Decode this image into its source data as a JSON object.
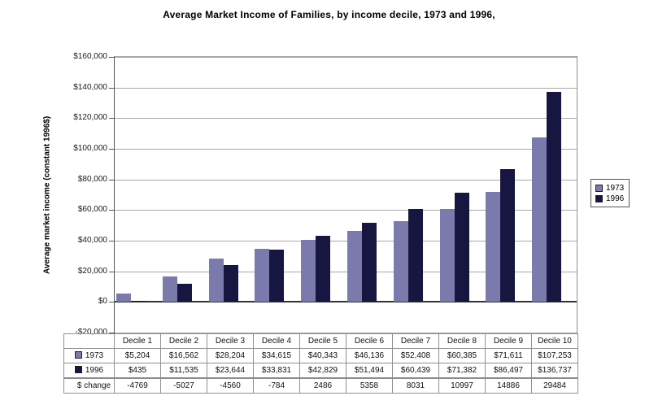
{
  "title": "Average Market Income of Families, by income decile, 1973 and 1996,",
  "chart_data": {
    "type": "bar",
    "title": "Average Market Income of Families, by income decile, 1973 and 1996,",
    "ylabel": "Average market income (constant 1996$)",
    "xlabel": "",
    "categories": [
      "Decile 1",
      "Decile 2",
      "Decile 3",
      "Decile 4",
      "Decile 5",
      "Decile 6",
      "Decile 7",
      "Decile 8",
      "Decile 9",
      "Decile 10"
    ],
    "series": [
      {
        "name": "1973",
        "color": "#7a7aad",
        "values": [
          5204,
          16562,
          28204,
          34615,
          40343,
          46136,
          52408,
          60385,
          71611,
          107253
        ]
      },
      {
        "name": "1996",
        "color": "#161640",
        "values": [
          435,
          11535,
          23644,
          33831,
          42829,
          51494,
          60439,
          71382,
          86497,
          136737
        ]
      }
    ],
    "ylim": [
      -20000,
      160000
    ],
    "ytick_step": 20000,
    "ytick_labels": [
      "-$20,000",
      "$0",
      "$20,000",
      "$40,000",
      "$60,000",
      "$80,000",
      "$100,000",
      "$120,000",
      "$140,000",
      "$160,000"
    ],
    "grid": true,
    "legend_position": "right"
  },
  "table": {
    "corner_label": "",
    "row_labels": [
      "1973",
      "1996",
      "$ change"
    ],
    "formatted_rows": [
      [
        "$5,204",
        "$16,562",
        "$28,204",
        "$34,615",
        "$40,343",
        "$46,136",
        "$52,408",
        "$60,385",
        "$71,611",
        "$107,253"
      ],
      [
        "$435",
        "$11,535",
        "$23,644",
        "$33,831",
        "$42,829",
        "$51,494",
        "$60,439",
        "$71,382",
        "$86,497",
        "$136,737"
      ],
      [
        "-4769",
        "-5027",
        "-4560",
        "-784",
        "2486",
        "5358",
        "8031",
        "10997",
        "14886",
        "29484"
      ]
    ],
    "change_values": [
      -4769,
      -5027,
      -4560,
      -784,
      2486,
      5358,
      8031,
      10997,
      14886,
      29484
    ]
  },
  "colors": {
    "gridline": "#a8a8a8",
    "zero_line": "#333333",
    "axis": "#444444",
    "series_1973": "#7a7aad",
    "series_1996": "#161640"
  }
}
